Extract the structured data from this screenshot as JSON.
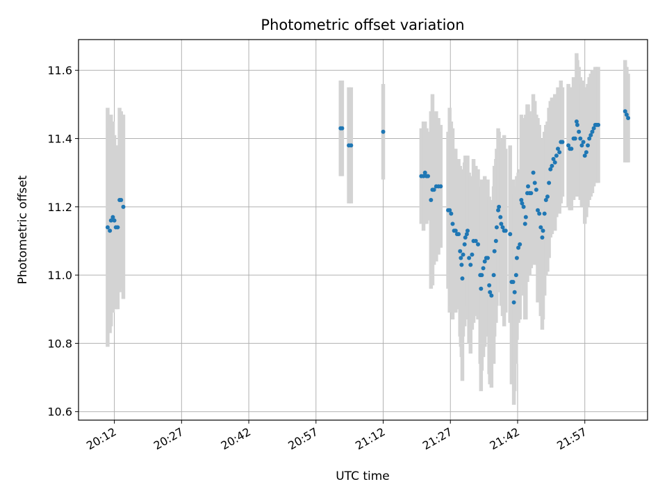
{
  "chart_data": {
    "type": "scatter",
    "title": "Photometric offset variation",
    "xlabel": "UTC time",
    "ylabel": "Photometric offset",
    "x_axis": {
      "kind": "time",
      "range": [
        "20:04",
        "22:11"
      ],
      "ticks": [
        "20:12",
        "20:27",
        "20:42",
        "20:57",
        "21:12",
        "21:27",
        "21:42",
        "21:57"
      ],
      "tick_rotation": "30deg"
    },
    "y_axis": {
      "range": [
        10.575,
        11.69
      ],
      "ticks": [
        "10.6",
        "10.8",
        "11.0",
        "11.2",
        "11.4",
        "11.6"
      ]
    },
    "grid": true,
    "colors": {
      "points": "#1f77b4",
      "errorbars": "#d3d3d3",
      "grid": "#b0b0b0"
    },
    "series": [
      {
        "points": [
          [
            "20:10:30",
            11.14,
            0.35
          ],
          [
            "20:11:00",
            11.13,
            0.3
          ],
          [
            "20:11:15",
            11.16,
            0.31
          ],
          [
            "20:11:40",
            11.17,
            0.28
          ],
          [
            "20:12:00",
            11.16,
            0.25
          ],
          [
            "20:12:20",
            11.14,
            0.24
          ],
          [
            "20:12:45",
            11.14,
            0.24
          ],
          [
            "20:13:10",
            11.22,
            0.27
          ],
          [
            "20:13:30",
            11.22,
            0.26
          ],
          [
            "20:14:00",
            11.2,
            0.27
          ],
          [
            "21:02:30",
            11.43,
            0.14
          ],
          [
            "21:02:50",
            11.43,
            0.14
          ],
          [
            "21:04:20",
            11.38,
            0.17
          ],
          [
            "21:04:50",
            11.38,
            0.17
          ],
          [
            "21:12:00",
            11.42,
            0.14
          ],
          [
            "21:20:30",
            11.29,
            0.14
          ],
          [
            "21:21:00",
            11.29,
            0.16
          ],
          [
            "21:21:20",
            11.3,
            0.15
          ],
          [
            "21:21:40",
            11.29,
            0.14
          ],
          [
            "21:22:00",
            11.29,
            0.13
          ],
          [
            "21:22:40",
            11.22,
            0.26
          ],
          [
            "21:23:00",
            11.25,
            0.28
          ],
          [
            "21:23:20",
            11.25,
            0.22
          ],
          [
            "21:23:50",
            11.26,
            0.22
          ],
          [
            "21:24:20",
            11.26,
            0.2
          ],
          [
            "21:24:50",
            11.26,
            0.18
          ],
          [
            "21:26:30",
            11.19,
            0.23
          ],
          [
            "21:26:50",
            11.19,
            0.3
          ],
          [
            "21:27:10",
            11.18,
            0.27
          ],
          [
            "21:27:30",
            11.15,
            0.28
          ],
          [
            "21:27:50",
            11.13,
            0.24
          ],
          [
            "21:28:10",
            11.13,
            0.24
          ],
          [
            "21:28:30",
            11.12,
            0.22
          ],
          [
            "21:28:50",
            11.12,
            0.22
          ],
          [
            "21:29:10",
            11.07,
            0.25
          ],
          [
            "21:29:20",
            11.05,
            0.26
          ],
          [
            "21:29:30",
            11.03,
            0.27
          ],
          [
            "21:29:40",
            10.99,
            0.3
          ],
          [
            "21:29:50",
            11.06,
            0.24
          ],
          [
            "21:30:10",
            11.09,
            0.24
          ],
          [
            "21:30:20",
            11.11,
            0.24
          ],
          [
            "21:30:40",
            11.12,
            0.23
          ],
          [
            "21:30:50",
            11.13,
            0.22
          ],
          [
            "21:31:10",
            11.05,
            0.25
          ],
          [
            "21:31:30",
            11.03,
            0.26
          ],
          [
            "21:31:50",
            11.06,
            0.22
          ],
          [
            "21:32:10",
            11.1,
            0.24
          ],
          [
            "21:32:40",
            11.1,
            0.22
          ],
          [
            "21:33:10",
            11.09,
            0.22
          ],
          [
            "21:33:40",
            11.0,
            0.26
          ],
          [
            "21:33:50",
            10.96,
            0.3
          ],
          [
            "21:34:00",
            11.0,
            0.28
          ],
          [
            "21:34:20",
            11.02,
            0.26
          ],
          [
            "21:34:40",
            11.04,
            0.25
          ],
          [
            "21:35:00",
            11.05,
            0.23
          ],
          [
            "21:35:20",
            11.05,
            0.23
          ],
          [
            "21:35:40",
            10.97,
            0.26
          ],
          [
            "21:35:50",
            10.95,
            0.27
          ],
          [
            "21:36:10",
            10.94,
            0.27
          ],
          [
            "21:36:40",
            11.0,
            0.26
          ],
          [
            "21:36:50",
            11.07,
            0.25
          ],
          [
            "21:37:10",
            11.1,
            0.24
          ],
          [
            "21:37:20",
            11.14,
            0.23
          ],
          [
            "21:37:40",
            11.19,
            0.24
          ],
          [
            "21:37:50",
            11.2,
            0.22
          ],
          [
            "21:38:10",
            11.17,
            0.22
          ],
          [
            "21:38:20",
            11.15,
            0.24
          ],
          [
            "21:38:40",
            11.14,
            0.26
          ],
          [
            "21:39:00",
            11.13,
            0.28
          ],
          [
            "21:39:20",
            11.13,
            0.24
          ],
          [
            "21:40:20",
            11.12,
            0.26
          ],
          [
            "21:40:40",
            10.98,
            0.3
          ],
          [
            "21:41:00",
            10.98,
            0.3
          ],
          [
            "21:41:10",
            10.92,
            0.3
          ],
          [
            "21:41:20",
            10.95,
            0.29
          ],
          [
            "21:41:40",
            11.0,
            0.26
          ],
          [
            "21:41:50",
            11.05,
            0.24
          ],
          [
            "21:42:10",
            11.08,
            0.22
          ],
          [
            "21:42:30",
            11.09,
            0.22
          ],
          [
            "21:42:50",
            11.22,
            0.25
          ],
          [
            "21:43:00",
            11.21,
            0.24
          ],
          [
            "21:43:20",
            11.2,
            0.26
          ],
          [
            "21:43:40",
            11.15,
            0.28
          ],
          [
            "21:43:50",
            11.17,
            0.3
          ],
          [
            "21:44:10",
            11.24,
            0.26
          ],
          [
            "21:44:20",
            11.26,
            0.24
          ],
          [
            "21:44:40",
            11.24,
            0.24
          ],
          [
            "21:45:00",
            11.24,
            0.22
          ],
          [
            "21:45:30",
            11.3,
            0.23
          ],
          [
            "21:45:50",
            11.27,
            0.24
          ],
          [
            "21:46:10",
            11.25,
            0.22
          ],
          [
            "21:46:30",
            11.19,
            0.27
          ],
          [
            "21:46:50",
            11.18,
            0.26
          ],
          [
            "21:47:10",
            11.14,
            0.26
          ],
          [
            "21:47:30",
            11.11,
            0.27
          ],
          [
            "21:47:40",
            11.13,
            0.26
          ],
          [
            "21:48:00",
            11.18,
            0.24
          ],
          [
            "21:48:20",
            11.22,
            0.22
          ],
          [
            "21:48:40",
            11.23,
            0.22
          ],
          [
            "21:49:00",
            11.27,
            0.22
          ],
          [
            "21:49:20",
            11.31,
            0.2
          ],
          [
            "21:49:40",
            11.32,
            0.2
          ],
          [
            "21:50:00",
            11.34,
            0.18
          ],
          [
            "21:50:20",
            11.33,
            0.2
          ],
          [
            "21:50:40",
            11.35,
            0.18
          ],
          [
            "21:51:00",
            11.37,
            0.18
          ],
          [
            "21:51:20",
            11.36,
            0.18
          ],
          [
            "21:51:40",
            11.39,
            0.18
          ],
          [
            "21:52:00",
            11.39,
            0.16
          ],
          [
            "21:53:20",
            11.38,
            0.18
          ],
          [
            "21:53:40",
            11.37,
            0.18
          ],
          [
            "21:54:00",
            11.37,
            0.18
          ],
          [
            "21:54:30",
            11.4,
            0.18
          ],
          [
            "21:54:50",
            11.4,
            0.17
          ],
          [
            "21:55:10",
            11.45,
            0.2
          ],
          [
            "21:55:20",
            11.44,
            0.19
          ],
          [
            "21:55:40",
            11.42,
            0.19
          ],
          [
            "21:56:00",
            11.4,
            0.18
          ],
          [
            "21:56:20",
            11.38,
            0.18
          ],
          [
            "21:56:40",
            11.39,
            0.18
          ],
          [
            "21:57:00",
            11.35,
            0.2
          ],
          [
            "21:57:20",
            11.36,
            0.19
          ],
          [
            "21:57:40",
            11.38,
            0.18
          ],
          [
            "21:58:00",
            11.4,
            0.18
          ],
          [
            "21:58:20",
            11.41,
            0.18
          ],
          [
            "21:58:40",
            11.42,
            0.18
          ],
          [
            "21:59:00",
            11.43,
            0.17
          ],
          [
            "21:59:20",
            11.44,
            0.17
          ],
          [
            "21:59:40",
            11.44,
            0.17
          ],
          [
            "22:00:00",
            11.44,
            0.17
          ],
          [
            "22:06:00",
            11.48,
            0.15
          ],
          [
            "22:06:20",
            11.47,
            0.14
          ],
          [
            "22:06:40",
            11.46,
            0.13
          ]
        ]
      }
    ]
  }
}
